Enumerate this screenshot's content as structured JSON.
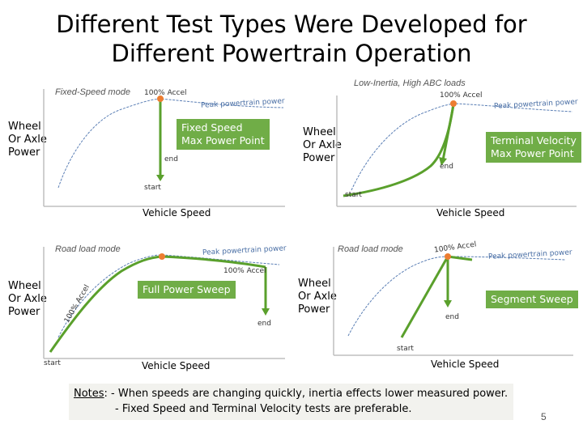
{
  "title_line1": "Different Test Types Were Developed for",
  "title_line2": "Different Powertrain Operation",
  "axis": {
    "y_label": [
      "Wheel",
      "Or Axle",
      "Power"
    ],
    "x_label": "Vehicle Speed"
  },
  "panels": {
    "top_left": {
      "mode": "Fixed-Speed mode",
      "accel": "100% Accel",
      "peak": "Peak powertrain power",
      "box": [
        "Fixed Speed",
        "Max Power Point"
      ],
      "end": "end",
      "start": "start"
    },
    "top_right": {
      "mode": "Low-Inertia, High ABC loads",
      "accel": "100% Accel",
      "peak": "Peak powertrain power",
      "box": [
        "Terminal Velocity",
        "Max Power Point"
      ],
      "end": "end",
      "start": "start"
    },
    "bottom_left": {
      "mode": "Road load mode",
      "accel": "100% Accel",
      "accel_rot": "100% Accel",
      "peak": "Peak powertrain power",
      "box": [
        "Full Power Sweep"
      ],
      "end": "end",
      "start": "start"
    },
    "bottom_right": {
      "mode": "Road load mode",
      "accel": "100% Accel",
      "peak": "Peak powertrain power",
      "box": [
        "Segment Sweep"
      ],
      "end": "end",
      "start": "start"
    }
  },
  "notes": {
    "label": "Notes",
    "line1": ": - When speeds are changing quickly, inertia effects lower measured power.",
    "line2": "- Fixed Speed and Terminal Velocity tests are preferable."
  },
  "page_number": "5",
  "colors": {
    "green": "#70ad47",
    "arrow_green": "#5aa02c",
    "peak_curve": "#5b7fb5",
    "dot": "#ed7d31",
    "axis": "#bfbfbf"
  }
}
